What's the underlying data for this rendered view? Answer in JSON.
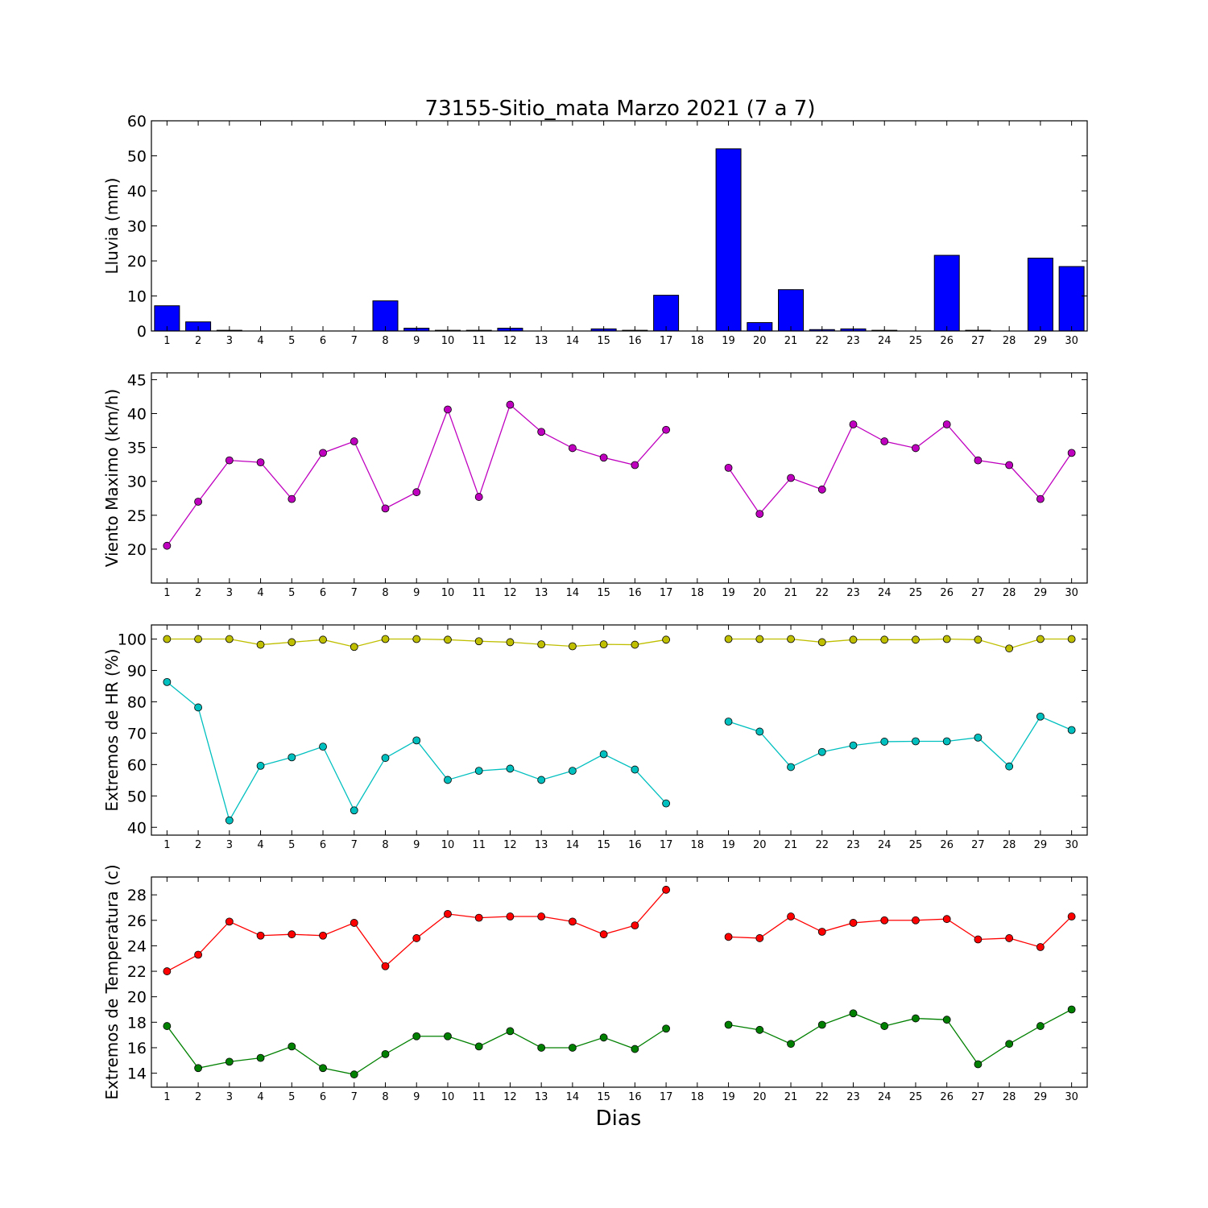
{
  "title": "73155-Sitio_mata Marzo 2021  (7 a 7)",
  "x_axis_label": "Dias",
  "chart_data": [
    {
      "type": "bar",
      "ylabel": "Lluvia (mm)",
      "ylim": [
        0,
        60
      ],
      "yticks": [
        0,
        10,
        20,
        30,
        40,
        50,
        60
      ],
      "categories": [
        "1",
        "2",
        "3",
        "4",
        "5",
        "6",
        "7",
        "8",
        "9",
        "10",
        "11",
        "12",
        "13",
        "14",
        "15",
        "16",
        "17",
        "18",
        "19",
        "20",
        "21",
        "22",
        "23",
        "24",
        "25",
        "26",
        "27",
        "28",
        "29",
        "30"
      ],
      "series": [
        {
          "color": "#0000ff",
          "values": [
            7.2,
            2.6,
            0.2,
            0,
            0,
            0,
            0,
            8.6,
            0.8,
            0.2,
            0.2,
            0.8,
            0,
            0,
            0.6,
            0.2,
            10.2,
            null,
            52,
            2.4,
            11.8,
            0.4,
            0.6,
            0.2,
            0,
            21.6,
            0.2,
            0,
            20.8,
            18.4
          ]
        }
      ]
    },
    {
      "type": "line",
      "ylabel": "Viento Maximo (km/h)",
      "ylim": [
        15,
        46
      ],
      "yticks": [
        20,
        25,
        30,
        35,
        40,
        45
      ],
      "categories": [
        "1",
        "2",
        "3",
        "4",
        "5",
        "6",
        "7",
        "8",
        "9",
        "10",
        "11",
        "12",
        "13",
        "14",
        "15",
        "16",
        "17",
        "18",
        "19",
        "20",
        "21",
        "22",
        "23",
        "24",
        "25",
        "26",
        "27",
        "28",
        "29",
        "30"
      ],
      "series": [
        {
          "color": "#bf00bf",
          "values": [
            20.5,
            27.0,
            33.1,
            32.8,
            27.4,
            34.2,
            35.9,
            26.0,
            28.4,
            40.6,
            27.7,
            41.3,
            37.3,
            34.9,
            33.5,
            32.4,
            37.6,
            null,
            32.0,
            25.2,
            30.5,
            28.8,
            38.4,
            35.9,
            34.9,
            38.4,
            33.1,
            32.4,
            27.4,
            34.2
          ]
        }
      ]
    },
    {
      "type": "line",
      "ylabel": "Extremos de HR (%)",
      "ylim": [
        37.5,
        104.5
      ],
      "yticks": [
        40,
        50,
        60,
        70,
        80,
        90,
        100
      ],
      "categories": [
        "1",
        "2",
        "3",
        "4",
        "5",
        "6",
        "7",
        "8",
        "9",
        "10",
        "11",
        "12",
        "13",
        "14",
        "15",
        "16",
        "17",
        "18",
        "19",
        "20",
        "21",
        "22",
        "23",
        "24",
        "25",
        "26",
        "27",
        "28",
        "29",
        "30"
      ],
      "series": [
        {
          "color": "#bfbf00",
          "values": [
            100,
            100,
            100,
            98.2,
            99,
            99.8,
            97.5,
            100,
            100,
            99.8,
            99.3,
            99,
            98.3,
            97.7,
            98.3,
            98.2,
            99.8,
            null,
            100,
            100,
            100,
            99,
            99.8,
            99.8,
            99.8,
            100,
            99.8,
            97,
            100,
            100
          ]
        },
        {
          "color": "#00bfbf",
          "values": [
            86.3,
            78.2,
            42.2,
            59.6,
            62.3,
            65.7,
            45.4,
            62.1,
            67.7,
            55.1,
            58.0,
            58.7,
            55.1,
            58.0,
            63.3,
            58.4,
            47.6,
            null,
            73.7,
            70.5,
            59.2,
            64.0,
            66.1,
            67.3,
            67.4,
            67.4,
            68.6,
            59.4,
            75.3,
            71.0
          ]
        }
      ]
    },
    {
      "type": "line",
      "ylabel": "Extremos de Temperatura (c)",
      "ylim": [
        12.9,
        29.4
      ],
      "yticks": [
        14,
        16,
        18,
        20,
        22,
        24,
        26,
        28
      ],
      "categories": [
        "1",
        "2",
        "3",
        "4",
        "5",
        "6",
        "7",
        "8",
        "9",
        "10",
        "11",
        "12",
        "13",
        "14",
        "15",
        "16",
        "17",
        "18",
        "19",
        "20",
        "21",
        "22",
        "23",
        "24",
        "25",
        "26",
        "27",
        "28",
        "29",
        "30"
      ],
      "series": [
        {
          "color": "#ff0000",
          "values": [
            22.0,
            23.3,
            25.9,
            24.8,
            24.9,
            24.8,
            25.8,
            22.4,
            24.6,
            26.5,
            26.2,
            26.3,
            26.3,
            25.9,
            24.9,
            25.6,
            28.4,
            null,
            24.7,
            24.6,
            26.3,
            25.1,
            25.8,
            26.0,
            26.0,
            26.1,
            24.5,
            24.6,
            23.9,
            26.3
          ]
        },
        {
          "color": "#008000",
          "values": [
            17.7,
            14.4,
            14.9,
            15.2,
            16.1,
            14.4,
            13.9,
            15.5,
            16.9,
            16.9,
            16.1,
            17.3,
            16.0,
            16.0,
            16.8,
            15.9,
            17.5,
            null,
            17.8,
            17.4,
            16.3,
            17.8,
            18.7,
            17.7,
            18.3,
            18.2,
            14.7,
            16.3,
            17.7,
            19.0
          ]
        }
      ]
    }
  ]
}
